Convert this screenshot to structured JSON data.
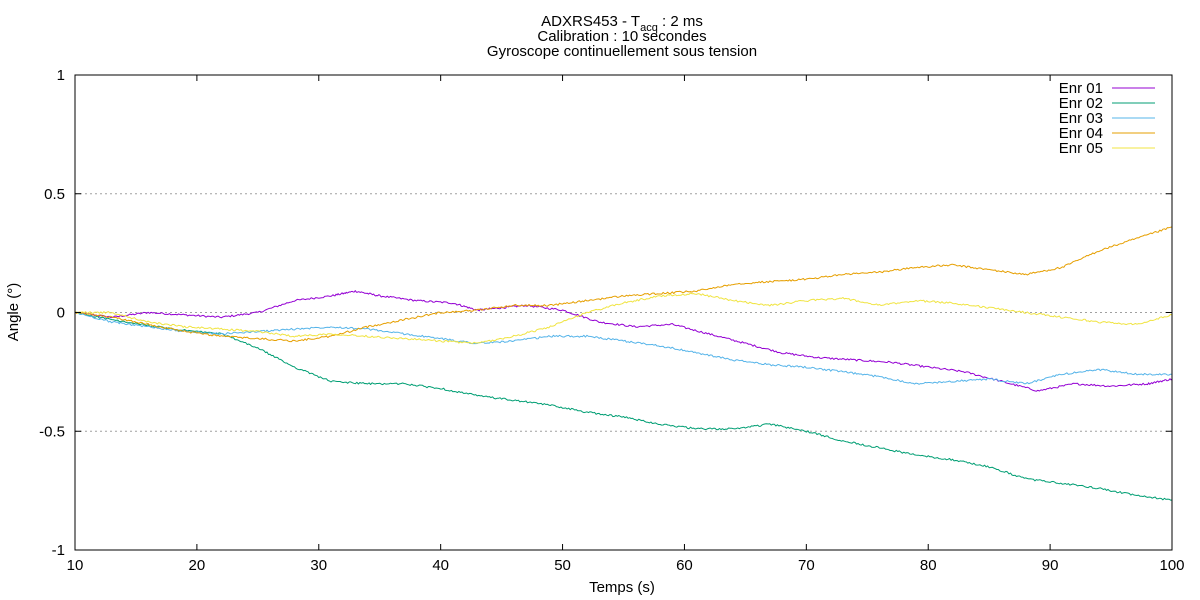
{
  "chart_data": {
    "type": "line",
    "title": {
      "line1_prefix": "ADXRS453 - T",
      "line1_sub": "acq",
      "line1_suffix": " : 2 ms",
      "line2": "Calibration : 10 secondes",
      "line3": "Gyroscope continuellement sous tension"
    },
    "xlabel": "Temps (s)",
    "ylabel": "Angle (°)",
    "xlim": [
      10,
      100
    ],
    "ylim": [
      -1,
      1
    ],
    "xticks": [
      10,
      20,
      30,
      40,
      50,
      60,
      70,
      80,
      90,
      100
    ],
    "xtick_labels": [
      "10",
      "20",
      "30",
      "40",
      "50",
      "60",
      "70",
      "80",
      "90",
      "100"
    ],
    "yticks": [
      -1,
      -0.5,
      0,
      0.5,
      1
    ],
    "ytick_labels": [
      "-1",
      "-0.5",
      "0",
      "0.5",
      "1"
    ],
    "grid": "horizontal dashed at -0.5, 0, 0.5",
    "legend_position": "top-right",
    "series": [
      {
        "name": "Enr 01",
        "color": "#9400d3",
        "x": [
          10,
          13,
          16,
          19,
          22,
          25,
          28,
          31,
          33,
          35,
          38,
          41,
          43,
          45,
          47,
          50,
          53,
          56,
          59,
          62,
          65,
          68,
          71,
          74,
          77,
          80,
          83,
          86,
          89,
          92,
          95,
          98,
          100
        ],
        "y": [
          0,
          -0.02,
          0,
          -0.01,
          -0.02,
          0,
          0.05,
          0.07,
          0.09,
          0.07,
          0.05,
          0.04,
          0.01,
          0.02,
          0.03,
          0.01,
          -0.04,
          -0.06,
          -0.05,
          -0.09,
          -0.13,
          -0.17,
          -0.19,
          -0.2,
          -0.21,
          -0.23,
          -0.25,
          -0.29,
          -0.33,
          -0.3,
          -0.31,
          -0.3,
          -0.28
        ]
      },
      {
        "name": "Enr 02",
        "color": "#009e73",
        "x": [
          10,
          14,
          18,
          22,
          25,
          28,
          31,
          34,
          37,
          40,
          43,
          46,
          49,
          52,
          55,
          58,
          61,
          64,
          67,
          70,
          73,
          76,
          79,
          82,
          85,
          88,
          91,
          94,
          97,
          100
        ],
        "y": [
          0,
          -0.04,
          -0.07,
          -0.09,
          -0.15,
          -0.23,
          -0.29,
          -0.3,
          -0.3,
          -0.32,
          -0.35,
          -0.37,
          -0.39,
          -0.42,
          -0.44,
          -0.47,
          -0.49,
          -0.49,
          -0.47,
          -0.5,
          -0.54,
          -0.57,
          -0.6,
          -0.62,
          -0.65,
          -0.7,
          -0.72,
          -0.74,
          -0.77,
          -0.79
        ]
      },
      {
        "name": "Enr 03",
        "color": "#56b4e9",
        "x": [
          10,
          13,
          16,
          19,
          22,
          25,
          28,
          31,
          34,
          37,
          40,
          43,
          46,
          49,
          52,
          55,
          58,
          61,
          64,
          67,
          70,
          73,
          76,
          79,
          82,
          85,
          88,
          91,
          94,
          97,
          100
        ],
        "y": [
          0,
          -0.04,
          -0.06,
          -0.08,
          -0.09,
          -0.08,
          -0.07,
          -0.06,
          -0.07,
          -0.09,
          -0.11,
          -0.13,
          -0.12,
          -0.1,
          -0.1,
          -0.12,
          -0.14,
          -0.17,
          -0.2,
          -0.22,
          -0.23,
          -0.25,
          -0.27,
          -0.3,
          -0.29,
          -0.28,
          -0.3,
          -0.26,
          -0.24,
          -0.26,
          -0.26
        ]
      },
      {
        "name": "Enr 04",
        "color": "#e69f00",
        "x": [
          10,
          13,
          16,
          19,
          22,
          25,
          28,
          31,
          34,
          37,
          40,
          43,
          46,
          49,
          52,
          55,
          58,
          61,
          64,
          67,
          70,
          73,
          76,
          79,
          82,
          85,
          88,
          91,
          94,
          97,
          100
        ],
        "y": [
          0,
          -0.02,
          -0.05,
          -0.08,
          -0.1,
          -0.11,
          -0.12,
          -0.1,
          -0.06,
          -0.03,
          0,
          0.01,
          0.03,
          0.03,
          0.05,
          0.07,
          0.08,
          0.09,
          0.12,
          0.13,
          0.14,
          0.16,
          0.17,
          0.19,
          0.2,
          0.18,
          0.16,
          0.19,
          0.26,
          0.31,
          0.36
        ]
      },
      {
        "name": "Enr 05",
        "color": "#f0e442",
        "x": [
          10,
          13,
          16,
          19,
          22,
          25,
          28,
          31,
          34,
          37,
          40,
          43,
          46,
          49,
          52,
          55,
          58,
          61,
          64,
          67,
          70,
          73,
          76,
          79,
          82,
          85,
          88,
          91,
          94,
          97,
          100
        ],
        "y": [
          0,
          0,
          -0.04,
          -0.06,
          -0.07,
          -0.08,
          -0.1,
          -0.09,
          -0.1,
          -0.11,
          -0.12,
          -0.13,
          -0.1,
          -0.06,
          0,
          0.04,
          0.07,
          0.08,
          0.05,
          0.03,
          0.05,
          0.06,
          0.03,
          0.05,
          0.04,
          0.02,
          0,
          -0.02,
          -0.04,
          -0.05,
          -0.01
        ]
      }
    ]
  }
}
